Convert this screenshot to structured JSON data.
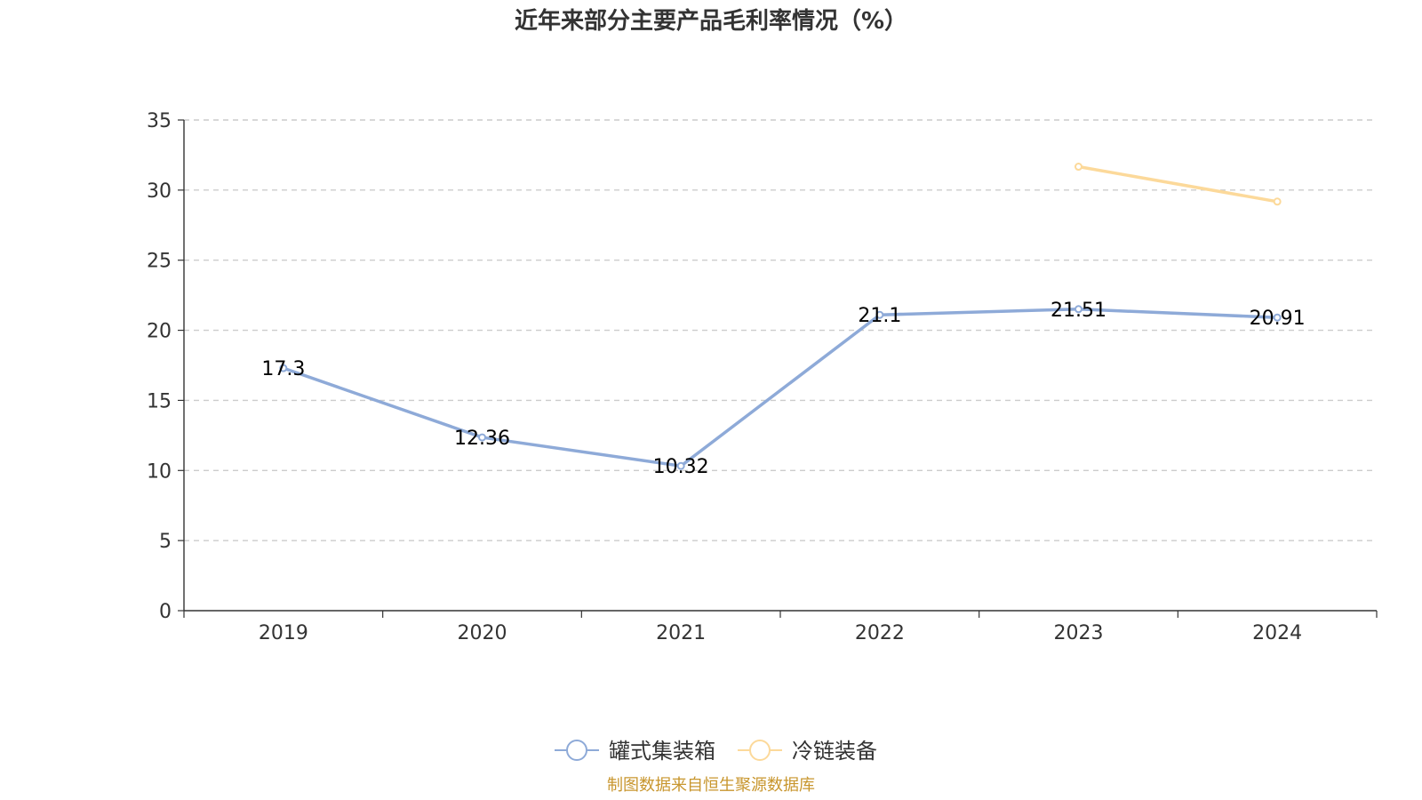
{
  "chart_data": {
    "type": "line",
    "title": "近年来部分主要产品毛利率情况（%）",
    "categories": [
      "2019",
      "2020",
      "2021",
      "2022",
      "2023",
      "2024"
    ],
    "series": [
      {
        "name": "罐式集装箱",
        "values": [
          17.3,
          12.36,
          10.32,
          21.1,
          21.51,
          20.91
        ],
        "labels": [
          "17.3",
          "12.36",
          "10.32",
          "21.1",
          "21.51",
          "20.91"
        ],
        "color": "#8eaad8",
        "show_labels": true
      },
      {
        "name": "冷链装备",
        "values": [
          null,
          null,
          null,
          null,
          31.67,
          29.18
        ],
        "color": "#fcd99a",
        "show_labels": false
      }
    ],
    "ylim": [
      0,
      35
    ],
    "yticks": [
      0,
      5,
      10,
      15,
      20,
      25,
      30,
      35
    ],
    "grid": true,
    "legend_position": "bottom"
  },
  "source_note": "制图数据来自恒生聚源数据库",
  "colors": {
    "axis": "#333333",
    "grid": "#cccccc",
    "source": "#c8962e"
  }
}
